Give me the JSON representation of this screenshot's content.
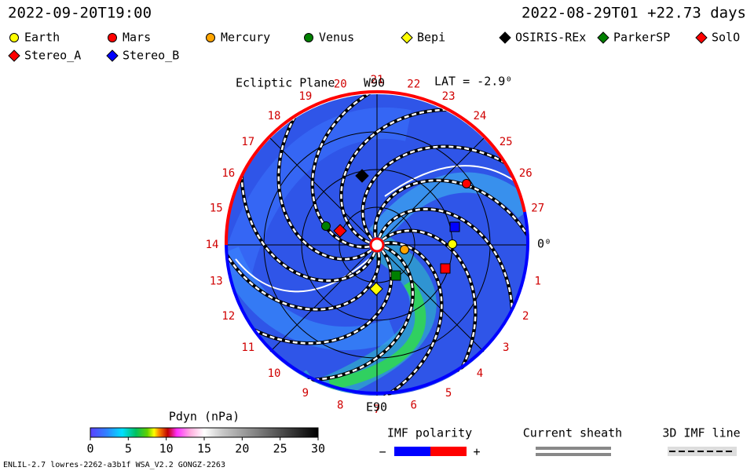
{
  "header": {
    "run_time": "2022-09-20T19:00",
    "model_time": "2022-08-29T01 +22.73 days"
  },
  "legend": [
    {
      "name": "Earth",
      "color": "#ffff00",
      "shape": "circle"
    },
    {
      "name": "Mars",
      "color": "#ff0000",
      "shape": "circle"
    },
    {
      "name": "Mercury",
      "color": "#ffa500",
      "shape": "circle"
    },
    {
      "name": "Venus",
      "color": "#008000",
      "shape": "circle"
    },
    {
      "name": "Bepi",
      "color": "#ffff00",
      "shape": "diamond"
    },
    {
      "name": "OSIRIS-REx",
      "color": "#000000",
      "shape": "diamond"
    },
    {
      "name": "ParkerSP",
      "color": "#008000",
      "shape": "diamond"
    },
    {
      "name": "SolO",
      "color": "#ff0000",
      "shape": "diamond"
    },
    {
      "name": "Stereo_A",
      "color": "#ff0000",
      "shape": "diamond"
    },
    {
      "name": "Stereo_B",
      "color": "#0000ff",
      "shape": "diamond"
    }
  ],
  "plot": {
    "title": "Ecliptic Plane",
    "top_label": "W90",
    "latitude": "LAT = -2.9⁰",
    "right_label": "0⁰",
    "bottom_label": "E90",
    "longitude_labels": [
      "1",
      "2",
      "3",
      "4",
      "5",
      "6",
      "7",
      "8",
      "9",
      "10",
      "11",
      "12",
      "13",
      "14",
      "15",
      "16",
      "17",
      "18",
      "19",
      "20",
      "21",
      "22",
      "23",
      "24",
      "25",
      "26",
      "27"
    ]
  },
  "colorbar": {
    "title": "Pdyn (nPa)",
    "range": [
      0,
      30
    ],
    "ticks": [
      0,
      5,
      10,
      15,
      20,
      25,
      30
    ]
  },
  "imf": {
    "title": "IMF polarity",
    "minus": "−",
    "plus": "+"
  },
  "sheath": {
    "title": "Current sheath"
  },
  "imf_line": {
    "title": "3D IMF line"
  },
  "footer": {
    "text": "ENLIL-2.7 lowres-2262-a3b1f WSA_V2.2 GONGZ-2263"
  }
}
